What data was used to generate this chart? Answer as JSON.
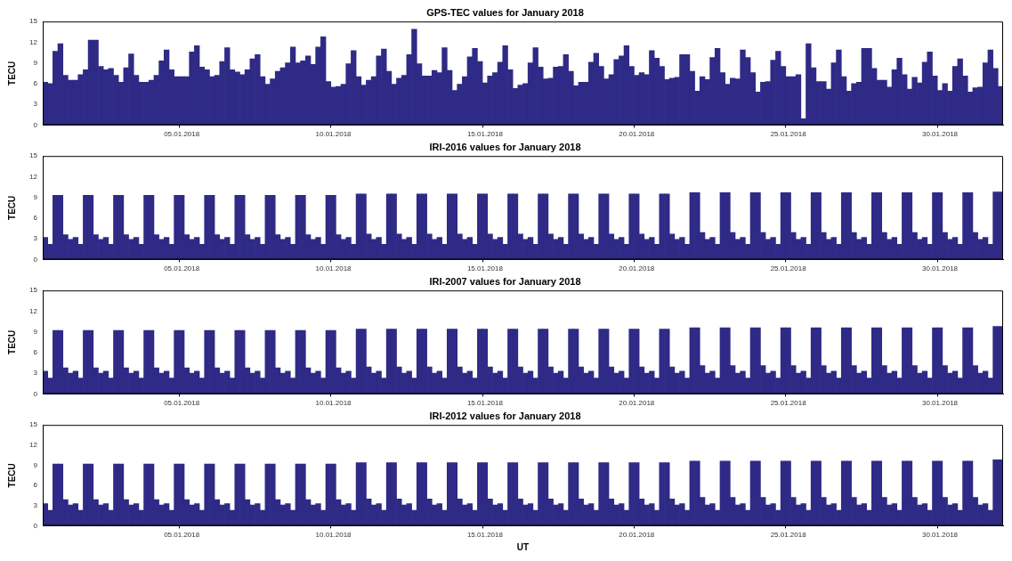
{
  "chart_data": [
    {
      "type": "bar",
      "title": "GPS-TEC values for January 2018",
      "ylabel": "TECU",
      "color": "#2e2a86",
      "ylim": [
        0,
        15
      ],
      "yticks": [
        0,
        3,
        6,
        9,
        12,
        15
      ],
      "categories": [
        null,
        null,
        null,
        null,
        null,
        null,
        null,
        null,
        null,
        null,
        null,
        null,
        null,
        null,
        null,
        null,
        null,
        null,
        null,
        null,
        null,
        null,
        null,
        null,
        null,
        null,
        null,
        "05.01.2018",
        null,
        null,
        null,
        null,
        null,
        null,
        null,
        null,
        null,
        null,
        null,
        null,
        null,
        null,
        null,
        null,
        null,
        null,
        null,
        null,
        null,
        null,
        null,
        null,
        null,
        null,
        null,
        null,
        null,
        "10.01.2018",
        null,
        null,
        null,
        null,
        null,
        null,
        null,
        null,
        null,
        null,
        null,
        null,
        null,
        null,
        null,
        null,
        null,
        null,
        null,
        null,
        null,
        null,
        null,
        null,
        null,
        null,
        null,
        null,
        null,
        "15.01.2018",
        null,
        null,
        null,
        null,
        null,
        null,
        null,
        null,
        null,
        null,
        null,
        null,
        null,
        null,
        null,
        null,
        null,
        null,
        null,
        null,
        null,
        null,
        null,
        null,
        null,
        null,
        null,
        null,
        null,
        "20.01.2018",
        null,
        null,
        null,
        null,
        null,
        null,
        null,
        null,
        null,
        null,
        null,
        null,
        null,
        null,
        null,
        null,
        null,
        null,
        null,
        null,
        null,
        null,
        null,
        null,
        null,
        null,
        null,
        null,
        null,
        "25.01.2018",
        null,
        null,
        null,
        null,
        null,
        null,
        null,
        null,
        null,
        null,
        null,
        null,
        null,
        null,
        null,
        null,
        null,
        null,
        null,
        null,
        null,
        null,
        null,
        null,
        null,
        null,
        null,
        null,
        null,
        "30.01.2018",
        null,
        null,
        null,
        null,
        null,
        null,
        null,
        null,
        null,
        null,
        null,
        null
      ],
      "values": [
        6.2,
        6.0,
        10.7,
        11.8,
        7.2,
        6.5,
        6.5,
        7.3,
        8.0,
        12.3,
        12.3,
        8.5,
        8.0,
        8.2,
        7.2,
        6.2,
        8.3,
        10.3,
        7.2,
        6.2,
        6.2,
        6.5,
        7.2,
        9.3,
        10.9,
        8.0,
        7.0,
        7.0,
        7.0,
        10.6,
        11.5,
        8.4,
        8.0,
        7.0,
        7.2,
        9.2,
        11.2,
        8.0,
        7.7,
        7.3,
        8.0,
        9.6,
        10.2,
        7.0,
        5.9,
        6.7,
        7.8,
        8.3,
        9.0,
        11.3,
        9.0,
        9.3,
        10.0,
        8.8,
        11.3,
        12.8,
        6.3,
        5.5,
        5.6,
        5.9,
        8.9,
        10.8,
        7.0,
        5.8,
        6.5,
        7.0,
        10.0,
        11.0,
        7.8,
        5.9,
        6.8,
        7.2,
        10.2,
        13.9,
        8.9,
        7.1,
        7.1,
        7.9,
        7.6,
        11.2,
        7.9,
        5.0,
        5.9,
        7.0,
        9.9,
        11.1,
        9.2,
        6.1,
        7.1,
        7.6,
        9.1,
        11.5,
        8.0,
        5.3,
        5.8,
        6.0,
        9.0,
        11.2,
        8.4,
        6.7,
        6.8,
        8.4,
        8.5,
        10.2,
        7.8,
        5.7,
        6.2,
        6.2,
        9.1,
        10.4,
        8.5,
        6.7,
        7.3,
        9.5,
        10.0,
        11.5,
        8.5,
        7.2,
        7.6,
        7.3,
        10.8,
        9.7,
        8.5,
        6.6,
        6.8,
        6.9,
        10.2,
        10.2,
        7.8,
        4.9,
        7.0,
        6.6,
        9.8,
        11.1,
        7.6,
        5.9,
        6.8,
        6.7,
        10.9,
        9.8,
        7.6,
        4.8,
        6.2,
        6.3,
        9.4,
        10.7,
        8.5,
        7.0,
        7.0,
        7.3,
        0.9,
        11.8,
        8.3,
        6.3,
        6.3,
        5.2,
        9.0,
        10.9,
        7.0,
        4.9,
        6.0,
        6.2,
        11.1,
        11.1,
        8.2,
        6.5,
        6.5,
        5.5,
        8.0,
        9.7,
        7.3,
        5.2,
        6.9,
        6.1,
        9.1,
        10.6,
        7.1,
        5.0,
        6.0,
        4.9,
        8.5,
        9.6,
        7.1,
        4.8,
        5.4,
        5.5,
        9.0,
        10.9,
        8.2,
        5.6
      ]
    },
    {
      "type": "bar",
      "title": "IRI-2016 values for January 2018",
      "ylabel": "TECU",
      "color": "#2e2a86",
      "ylim": [
        0,
        15
      ],
      "yticks": [
        0,
        3,
        6,
        9,
        12,
        15
      ],
      "categories": [
        null,
        null,
        null,
        null,
        null,
        null,
        null,
        null,
        null,
        null,
        null,
        null,
        null,
        null,
        null,
        null,
        null,
        null,
        null,
        null,
        null,
        null,
        null,
        null,
        null,
        null,
        null,
        "05.01.2018",
        null,
        null,
        null,
        null,
        null,
        null,
        null,
        null,
        null,
        null,
        null,
        null,
        null,
        null,
        null,
        null,
        null,
        null,
        null,
        null,
        null,
        null,
        null,
        null,
        null,
        null,
        null,
        null,
        null,
        "10.01.2018",
        null,
        null,
        null,
        null,
        null,
        null,
        null,
        null,
        null,
        null,
        null,
        null,
        null,
        null,
        null,
        null,
        null,
        null,
        null,
        null,
        null,
        null,
        null,
        null,
        null,
        null,
        null,
        null,
        null,
        "15.01.2018",
        null,
        null,
        null,
        null,
        null,
        null,
        null,
        null,
        null,
        null,
        null,
        null,
        null,
        null,
        null,
        null,
        null,
        null,
        null,
        null,
        null,
        null,
        null,
        null,
        null,
        null,
        null,
        null,
        null,
        "20.01.2018",
        null,
        null,
        null,
        null,
        null,
        null,
        null,
        null,
        null,
        null,
        null,
        null,
        null,
        null,
        null,
        null,
        null,
        null,
        null,
        null,
        null,
        null,
        null,
        null,
        null,
        null,
        null,
        null,
        null,
        "25.01.2018",
        null,
        null,
        null,
        null,
        null,
        null,
        null,
        null,
        null,
        null,
        null,
        null,
        null,
        null,
        null,
        null,
        null,
        null,
        null,
        null,
        null,
        null,
        null,
        null,
        null,
        null,
        null,
        null,
        null,
        "30.01.2018",
        null,
        null,
        null,
        null,
        null,
        null,
        null,
        null,
        null,
        null,
        null,
        null
      ],
      "values": [
        3.2,
        2.2,
        9.3,
        9.3,
        3.6,
        2.9,
        3.2,
        2.2,
        9.3,
        9.3,
        3.6,
        2.9,
        3.2,
        2.2,
        9.3,
        9.3,
        3.6,
        2.9,
        3.2,
        2.2,
        9.3,
        9.3,
        3.6,
        2.9,
        3.2,
        2.2,
        9.3,
        9.3,
        3.6,
        2.9,
        3.2,
        2.2,
        9.3,
        9.3,
        3.6,
        2.9,
        3.2,
        2.2,
        9.3,
        9.3,
        3.6,
        2.9,
        3.2,
        2.2,
        9.3,
        9.3,
        3.6,
        2.9,
        3.2,
        2.2,
        9.3,
        9.3,
        3.6,
        2.9,
        3.2,
        2.2,
        9.3,
        9.3,
        3.6,
        2.9,
        3.2,
        2.2,
        9.5,
        9.5,
        3.7,
        2.9,
        3.2,
        2.2,
        9.5,
        9.5,
        3.7,
        2.9,
        3.2,
        2.2,
        9.5,
        9.5,
        3.7,
        2.9,
        3.2,
        2.2,
        9.5,
        9.5,
        3.7,
        2.9,
        3.2,
        2.2,
        9.5,
        9.5,
        3.7,
        2.9,
        3.2,
        2.2,
        9.5,
        9.5,
        3.7,
        2.9,
        3.2,
        2.2,
        9.5,
        9.5,
        3.7,
        2.9,
        3.2,
        2.2,
        9.5,
        9.5,
        3.7,
        2.9,
        3.2,
        2.2,
        9.5,
        9.5,
        3.7,
        2.9,
        3.2,
        2.2,
        9.5,
        9.5,
        3.7,
        2.9,
        3.2,
        2.2,
        9.5,
        9.5,
        3.7,
        2.9,
        3.2,
        2.2,
        9.7,
        9.7,
        3.9,
        2.9,
        3.2,
        2.2,
        9.7,
        9.7,
        3.9,
        2.9,
        3.2,
        2.2,
        9.7,
        9.7,
        3.9,
        2.9,
        3.2,
        2.2,
        9.7,
        9.7,
        3.9,
        2.9,
        3.2,
        2.2,
        9.7,
        9.7,
        3.9,
        2.9,
        3.2,
        2.2,
        9.7,
        9.7,
        3.9,
        2.9,
        3.2,
        2.2,
        9.7,
        9.7,
        3.9,
        2.9,
        3.2,
        2.2,
        9.7,
        9.7,
        3.9,
        2.9,
        3.2,
        2.2,
        9.7,
        9.7,
        3.9,
        2.9,
        3.2,
        2.2,
        9.7,
        9.7,
        3.9,
        2.9,
        3.2,
        2.2,
        9.8,
        9.8
      ]
    },
    {
      "type": "bar",
      "title": "IRI-2007 values for January 2018",
      "ylabel": "TECU",
      "color": "#2e2a86",
      "ylim": [
        0,
        15
      ],
      "yticks": [
        0,
        3,
        6,
        9,
        12,
        15
      ],
      "categories": [
        null,
        null,
        null,
        null,
        null,
        null,
        null,
        null,
        null,
        null,
        null,
        null,
        null,
        null,
        null,
        null,
        null,
        null,
        null,
        null,
        null,
        null,
        null,
        null,
        null,
        null,
        null,
        "05.01.2018",
        null,
        null,
        null,
        null,
        null,
        null,
        null,
        null,
        null,
        null,
        null,
        null,
        null,
        null,
        null,
        null,
        null,
        null,
        null,
        null,
        null,
        null,
        null,
        null,
        null,
        null,
        null,
        null,
        null,
        "10.01.2018",
        null,
        null,
        null,
        null,
        null,
        null,
        null,
        null,
        null,
        null,
        null,
        null,
        null,
        null,
        null,
        null,
        null,
        null,
        null,
        null,
        null,
        null,
        null,
        null,
        null,
        null,
        null,
        null,
        null,
        "15.01.2018",
        null,
        null,
        null,
        null,
        null,
        null,
        null,
        null,
        null,
        null,
        null,
        null,
        null,
        null,
        null,
        null,
        null,
        null,
        null,
        null,
        null,
        null,
        null,
        null,
        null,
        null,
        null,
        null,
        null,
        "20.01.2018",
        null,
        null,
        null,
        null,
        null,
        null,
        null,
        null,
        null,
        null,
        null,
        null,
        null,
        null,
        null,
        null,
        null,
        null,
        null,
        null,
        null,
        null,
        null,
        null,
        null,
        null,
        null,
        null,
        null,
        "25.01.2018",
        null,
        null,
        null,
        null,
        null,
        null,
        null,
        null,
        null,
        null,
        null,
        null,
        null,
        null,
        null,
        null,
        null,
        null,
        null,
        null,
        null,
        null,
        null,
        null,
        null,
        null,
        null,
        null,
        null,
        "30.01.2018",
        null,
        null,
        null,
        null,
        null,
        null,
        null,
        null,
        null,
        null,
        null,
        null
      ],
      "values": [
        3.3,
        2.3,
        9.2,
        9.2,
        3.8,
        3.0,
        3.3,
        2.3,
        9.2,
        9.2,
        3.8,
        3.0,
        3.3,
        2.3,
        9.2,
        9.2,
        3.8,
        3.0,
        3.3,
        2.3,
        9.2,
        9.2,
        3.8,
        3.0,
        3.3,
        2.3,
        9.2,
        9.2,
        3.8,
        3.0,
        3.3,
        2.3,
        9.2,
        9.2,
        3.8,
        3.0,
        3.3,
        2.3,
        9.2,
        9.2,
        3.8,
        3.0,
        3.3,
        2.3,
        9.2,
        9.2,
        3.8,
        3.0,
        3.3,
        2.3,
        9.2,
        9.2,
        3.8,
        3.0,
        3.3,
        2.3,
        9.2,
        9.2,
        3.8,
        3.0,
        3.3,
        2.3,
        9.4,
        9.4,
        3.9,
        3.0,
        3.3,
        2.3,
        9.4,
        9.4,
        3.9,
        3.0,
        3.3,
        2.3,
        9.4,
        9.4,
        3.9,
        3.0,
        3.3,
        2.3,
        9.4,
        9.4,
        3.9,
        3.0,
        3.3,
        2.3,
        9.4,
        9.4,
        3.9,
        3.0,
        3.3,
        2.3,
        9.4,
        9.4,
        3.9,
        3.0,
        3.3,
        2.3,
        9.4,
        9.4,
        3.9,
        3.0,
        3.3,
        2.3,
        9.4,
        9.4,
        3.9,
        3.0,
        3.3,
        2.3,
        9.4,
        9.4,
        3.9,
        3.0,
        3.3,
        2.3,
        9.4,
        9.4,
        3.9,
        3.0,
        3.3,
        2.3,
        9.4,
        9.4,
        3.9,
        3.0,
        3.3,
        2.3,
        9.6,
        9.6,
        4.1,
        3.0,
        3.3,
        2.3,
        9.6,
        9.6,
        4.1,
        3.0,
        3.3,
        2.3,
        9.6,
        9.6,
        4.1,
        3.0,
        3.3,
        2.3,
        9.6,
        9.6,
        4.1,
        3.0,
        3.3,
        2.3,
        9.6,
        9.6,
        4.1,
        3.0,
        3.3,
        2.3,
        9.6,
        9.6,
        4.1,
        3.0,
        3.3,
        2.3,
        9.6,
        9.6,
        4.1,
        3.0,
        3.3,
        2.3,
        9.6,
        9.6,
        4.1,
        3.0,
        3.3,
        2.3,
        9.6,
        9.6,
        4.1,
        3.0,
        3.3,
        2.3,
        9.6,
        9.6,
        4.1,
        3.0,
        3.3,
        2.3,
        9.8,
        9.8
      ]
    },
    {
      "type": "bar",
      "title": "IRI-2012 values for January 2018",
      "ylabel": "TECU",
      "xlabel": "UT",
      "color": "#2e2a86",
      "ylim": [
        0,
        15
      ],
      "yticks": [
        0,
        3,
        6,
        9,
        12,
        15
      ],
      "categories": [
        null,
        null,
        null,
        null,
        null,
        null,
        null,
        null,
        null,
        null,
        null,
        null,
        null,
        null,
        null,
        null,
        null,
        null,
        null,
        null,
        null,
        null,
        null,
        null,
        null,
        null,
        null,
        "05.01.2018",
        null,
        null,
        null,
        null,
        null,
        null,
        null,
        null,
        null,
        null,
        null,
        null,
        null,
        null,
        null,
        null,
        null,
        null,
        null,
        null,
        null,
        null,
        null,
        null,
        null,
        null,
        null,
        null,
        null,
        "10.01.2018",
        null,
        null,
        null,
        null,
        null,
        null,
        null,
        null,
        null,
        null,
        null,
        null,
        null,
        null,
        null,
        null,
        null,
        null,
        null,
        null,
        null,
        null,
        null,
        null,
        null,
        null,
        null,
        null,
        null,
        "15.01.2018",
        null,
        null,
        null,
        null,
        null,
        null,
        null,
        null,
        null,
        null,
        null,
        null,
        null,
        null,
        null,
        null,
        null,
        null,
        null,
        null,
        null,
        null,
        null,
        null,
        null,
        null,
        null,
        null,
        null,
        "20.01.2018",
        null,
        null,
        null,
        null,
        null,
        null,
        null,
        null,
        null,
        null,
        null,
        null,
        null,
        null,
        null,
        null,
        null,
        null,
        null,
        null,
        null,
        null,
        null,
        null,
        null,
        null,
        null,
        null,
        null,
        "25.01.2018",
        null,
        null,
        null,
        null,
        null,
        null,
        null,
        null,
        null,
        null,
        null,
        null,
        null,
        null,
        null,
        null,
        null,
        null,
        null,
        null,
        null,
        null,
        null,
        null,
        null,
        null,
        null,
        null,
        null,
        "30.01.2018",
        null,
        null,
        null,
        null,
        null,
        null,
        null,
        null,
        null,
        null,
        null,
        null
      ],
      "values": [
        3.3,
        2.3,
        9.2,
        9.2,
        3.9,
        3.1,
        3.3,
        2.3,
        9.2,
        9.2,
        3.9,
        3.1,
        3.3,
        2.3,
        9.2,
        9.2,
        3.9,
        3.1,
        3.3,
        2.3,
        9.2,
        9.2,
        3.9,
        3.1,
        3.3,
        2.3,
        9.2,
        9.2,
        3.9,
        3.1,
        3.3,
        2.3,
        9.2,
        9.2,
        3.9,
        3.1,
        3.3,
        2.3,
        9.2,
        9.2,
        3.9,
        3.1,
        3.3,
        2.3,
        9.2,
        9.2,
        3.9,
        3.1,
        3.3,
        2.3,
        9.2,
        9.2,
        3.9,
        3.1,
        3.3,
        2.3,
        9.2,
        9.2,
        3.9,
        3.1,
        3.3,
        2.3,
        9.4,
        9.4,
        4.0,
        3.1,
        3.3,
        2.3,
        9.4,
        9.4,
        4.0,
        3.1,
        3.3,
        2.3,
        9.4,
        9.4,
        4.0,
        3.1,
        3.3,
        2.3,
        9.4,
        9.4,
        4.0,
        3.1,
        3.3,
        2.3,
        9.4,
        9.4,
        4.0,
        3.1,
        3.3,
        2.3,
        9.4,
        9.4,
        4.0,
        3.1,
        3.3,
        2.3,
        9.4,
        9.4,
        4.0,
        3.1,
        3.3,
        2.3,
        9.4,
        9.4,
        4.0,
        3.1,
        3.3,
        2.3,
        9.4,
        9.4,
        4.0,
        3.1,
        3.3,
        2.3,
        9.4,
        9.4,
        4.0,
        3.1,
        3.3,
        2.3,
        9.4,
        9.4,
        4.0,
        3.1,
        3.3,
        2.3,
        9.6,
        9.6,
        4.2,
        3.1,
        3.3,
        2.3,
        9.6,
        9.6,
        4.2,
        3.1,
        3.3,
        2.3,
        9.6,
        9.6,
        4.2,
        3.1,
        3.3,
        2.3,
        9.6,
        9.6,
        4.2,
        3.1,
        3.3,
        2.3,
        9.6,
        9.6,
        4.2,
        3.1,
        3.3,
        2.3,
        9.6,
        9.6,
        4.2,
        3.1,
        3.3,
        2.3,
        9.6,
        9.6,
        4.2,
        3.1,
        3.3,
        2.3,
        9.6,
        9.6,
        4.2,
        3.1,
        3.3,
        2.3,
        9.6,
        9.6,
        4.2,
        3.1,
        3.3,
        2.3,
        9.6,
        9.6,
        4.2,
        3.1,
        3.3,
        2.3,
        9.8,
        9.8
      ]
    }
  ]
}
